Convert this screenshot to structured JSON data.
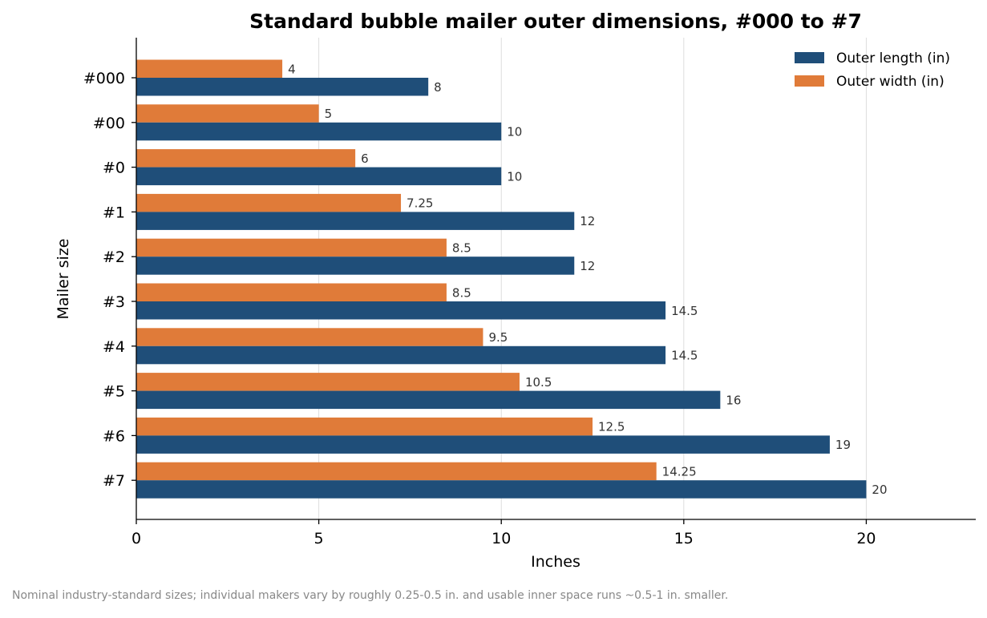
{
  "chart_data": {
    "type": "bar",
    "orientation": "horizontal",
    "title": "Standard bubble mailer outer dimensions, #000 to #7",
    "xlabel": "Inches",
    "ylabel": "Mailer size",
    "categories": [
      "#000",
      "#00",
      "#0",
      "#1",
      "#2",
      "#3",
      "#4",
      "#5",
      "#6",
      "#7"
    ],
    "series": [
      {
        "name": "Outer length (in)",
        "color": "#1f4e79",
        "values": [
          8,
          10,
          10,
          12,
          12,
          14.5,
          14.5,
          16,
          19,
          20
        ],
        "labels": [
          "8",
          "10",
          "10",
          "12",
          "12",
          "14.5",
          "14.5",
          "16",
          "19",
          "20"
        ]
      },
      {
        "name": "Outer width (in)",
        "color": "#e07b39",
        "values": [
          4,
          5,
          6,
          7.25,
          8.5,
          8.5,
          9.5,
          10.5,
          12.5,
          14.25
        ],
        "labels": [
          "4",
          "5",
          "6",
          "7.25",
          "8.5",
          "8.5",
          "9.5",
          "10.5",
          "12.5",
          "14.25"
        ]
      }
    ],
    "xlim": [
      0,
      23
    ],
    "xticks": [
      0,
      5,
      10,
      15,
      20
    ],
    "xtick_labels": [
      "0",
      "5",
      "10",
      "15",
      "20"
    ],
    "grid": "x",
    "legend": "top-right"
  },
  "footnote": "Nominal industry-standard sizes; individual makers vary by roughly 0.25-0.5 in. and usable inner space runs ~0.5-1 in. smaller."
}
